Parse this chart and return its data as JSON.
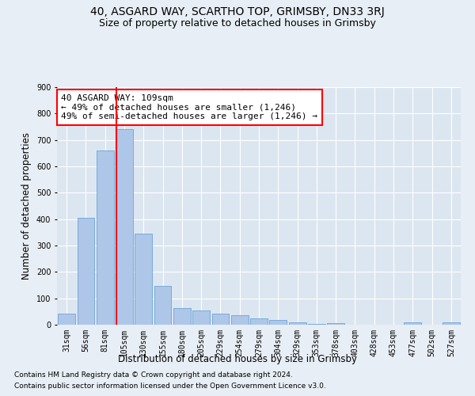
{
  "title1": "40, ASGARD WAY, SCARTHO TOP, GRIMSBY, DN33 3RJ",
  "title2": "Size of property relative to detached houses in Grimsby",
  "xlabel": "Distribution of detached houses by size in Grimsby",
  "ylabel": "Number of detached properties",
  "footnote1": "Contains HM Land Registry data © Crown copyright and database right 2024.",
  "footnote2": "Contains public sector information licensed under the Open Government Licence v3.0.",
  "annotation_line1": "40 ASGARD WAY: 109sqm",
  "annotation_line2": "← 49% of detached houses are smaller (1,246)",
  "annotation_line3": "49% of semi-detached houses are larger (1,246) →",
  "bar_labels": [
    "31sqm",
    "56sqm",
    "81sqm",
    "105sqm",
    "130sqm",
    "155sqm",
    "180sqm",
    "205sqm",
    "229sqm",
    "254sqm",
    "279sqm",
    "304sqm",
    "329sqm",
    "353sqm",
    "378sqm",
    "403sqm",
    "428sqm",
    "453sqm",
    "477sqm",
    "502sqm",
    "527sqm"
  ],
  "bar_values": [
    42,
    405,
    660,
    740,
    345,
    148,
    62,
    55,
    42,
    35,
    25,
    18,
    8,
    2,
    5,
    0,
    0,
    0,
    8,
    0,
    8
  ],
  "bar_color": "#aec6e8",
  "bar_edge_color": "#5b9bd5",
  "red_line_x": 2.575,
  "ylim": [
    0,
    900
  ],
  "yticks": [
    0,
    100,
    200,
    300,
    400,
    500,
    600,
    700,
    800,
    900
  ],
  "background_color": "#e8eef5",
  "plot_bg_color": "#dce6f1",
  "grid_color": "#ffffff",
  "title_fontsize": 10,
  "subtitle_fontsize": 9,
  "annotation_fontsize": 8,
  "tick_fontsize": 7,
  "label_fontsize": 8.5,
  "footnote_fontsize": 6.5
}
